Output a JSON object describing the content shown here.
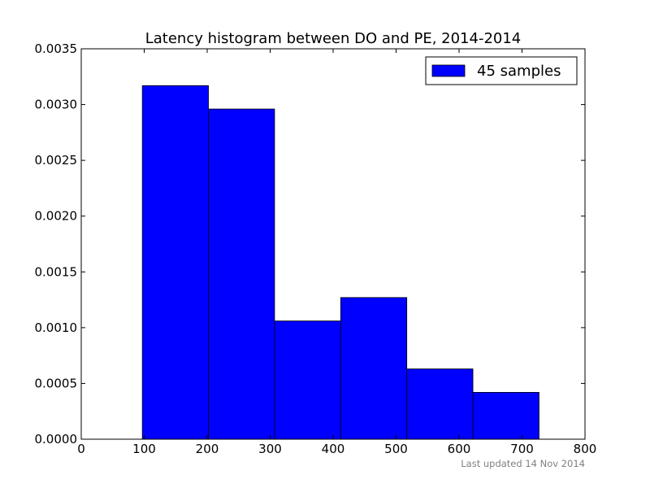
{
  "chart_data": {
    "type": "bar",
    "title": "Latency histogram between DO and PE, 2014-2014",
    "xlabel": "",
    "ylabel": "",
    "xlim": [
      0,
      800
    ],
    "ylim": [
      0,
      0.0035
    ],
    "x_ticks": [
      0,
      100,
      200,
      300,
      400,
      500,
      600,
      700,
      800
    ],
    "x_tick_labels": [
      "0",
      "100",
      "200",
      "300",
      "400",
      "500",
      "600",
      "700",
      "800"
    ],
    "y_ticks": [
      0,
      0.0005,
      0.001,
      0.0015,
      0.002,
      0.0025,
      0.003,
      0.0035
    ],
    "y_tick_labels": [
      "0.0000",
      "0.0005",
      "0.0010",
      "0.0015",
      "0.0020",
      "0.0025",
      "0.0030",
      "0.0035"
    ],
    "grid": false,
    "legend_position": "top-right",
    "bins": [
      {
        "start": 97,
        "end": 202,
        "value": 0.00317
      },
      {
        "start": 202,
        "end": 307,
        "value": 0.00296
      },
      {
        "start": 307,
        "end": 412,
        "value": 0.00106
      },
      {
        "start": 412,
        "end": 517,
        "value": 0.00127
      },
      {
        "start": 517,
        "end": 622,
        "value": 0.00063
      },
      {
        "start": 622,
        "end": 727,
        "value": 0.00042
      }
    ],
    "series": [
      {
        "name": "45 samples",
        "color": "#0000ff"
      }
    ],
    "footer": "Last updated 14 Nov 2014"
  }
}
